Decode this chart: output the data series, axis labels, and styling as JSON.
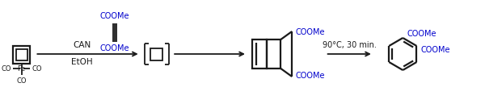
{
  "bg_color": "#ffffff",
  "black": "#1a1a1a",
  "blue": "#0000cc",
  "figsize": [
    6.0,
    1.34
  ],
  "dpi": 100,
  "reagent1_above": "CAN",
  "reagent1_below": "EtOH",
  "reagent2_above": "90°C, 30 min.",
  "alkyne_label_top": "COOMe",
  "alkyne_label_bot": "COOMe",
  "dewarbenzene_label_top": "COOMe",
  "dewarbenzene_label_bot": "COOMe",
  "benzene_label_top": "COOMe",
  "benzene_label_bot": "COOMe"
}
